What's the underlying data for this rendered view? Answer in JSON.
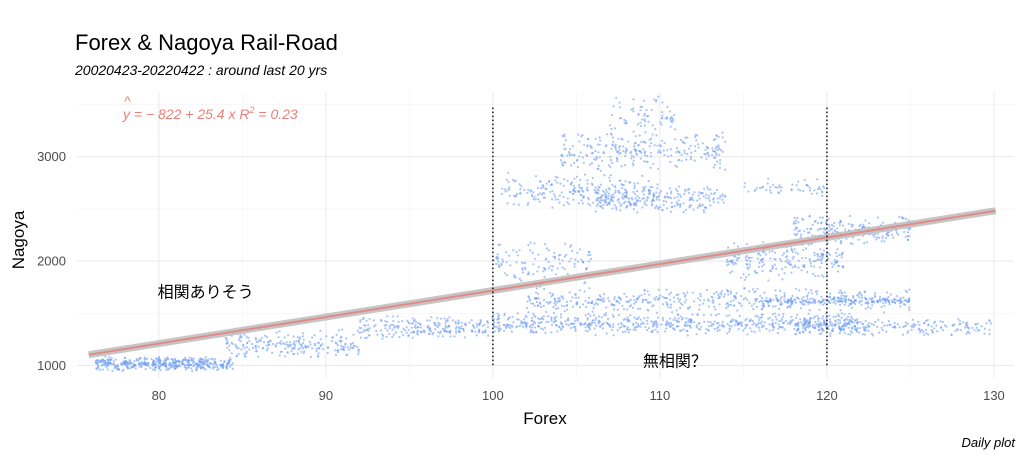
{
  "chart_data": {
    "type": "scatter",
    "title": "Forex & Nagoya Rail-Road",
    "subtitle": "20020423-20220422 : around last 20 yrs",
    "caption": "Daily plot",
    "xlabel": "Forex",
    "ylabel": "Nagoya",
    "xlim": [
      75.1,
      131.2
    ],
    "ylim": [
      880,
      3620
    ],
    "x_ticks": [
      80,
      90,
      100,
      110,
      120,
      130
    ],
    "x_tick_labels": [
      "80",
      "90",
      "100",
      "110",
      "120",
      "130"
    ],
    "y_ticks": [
      1000,
      2000,
      3000
    ],
    "y_tick_labels": [
      "1000",
      "2000",
      "3000"
    ],
    "grid": true,
    "point_color": "#6f9ff2",
    "regression": {
      "intercept": -822,
      "slope": 25.4,
      "r_squared": 0.23,
      "equation_parts": {
        "pre": "y",
        "mid": " = − 822 + 25.4 ",
        "x": "x",
        "r": "R",
        "sup": "2",
        "post": " = 0.23"
      },
      "line_color": "#e08b88",
      "band_color": "#bdbdbd",
      "x_range": [
        75.8,
        130.1
      ]
    },
    "vlines": [
      100,
      120
    ],
    "annotations": [
      {
        "text": "相関ありそう",
        "x": 82.8,
        "y": 1650
      },
      {
        "text": "無相関？",
        "x": 110.9,
        "y": 990
      }
    ],
    "point_clusters": [
      {
        "x": [
          76.2,
          84.5
        ],
        "y": [
          940,
          1090
        ],
        "n": 420
      },
      {
        "x": [
          84,
          92
        ],
        "y": [
          1050,
          1350
        ],
        "n": 220
      },
      {
        "x": [
          92,
          100
        ],
        "y": [
          1250,
          1480
        ],
        "n": 220
      },
      {
        "x": [
          100,
          122
        ],
        "y": [
          1280,
          1520
        ],
        "n": 650
      },
      {
        "x": [
          102,
          125
        ],
        "y": [
          1500,
          1750
        ],
        "n": 450
      },
      {
        "x": [
          100,
          106
        ],
        "y": [
          1750,
          2200
        ],
        "n": 120
      },
      {
        "x": [
          100.5,
          110
        ],
        "y": [
          2500,
          2850
        ],
        "n": 220
      },
      {
        "x": [
          104,
          114
        ],
        "y": [
          2850,
          3250
        ],
        "n": 260
      },
      {
        "x": [
          106,
          114
        ],
        "y": [
          2450,
          2750
        ],
        "n": 220
      },
      {
        "x": [
          107,
          111
        ],
        "y": [
          3200,
          3600
        ],
        "n": 70
      },
      {
        "x": [
          115,
          120
        ],
        "y": [
          2600,
          2800
        ],
        "n": 50
      },
      {
        "x": [
          114,
          121
        ],
        "y": [
          1800,
          2200
        ],
        "n": 200
      },
      {
        "x": [
          118,
          125
        ],
        "y": [
          2150,
          2450
        ],
        "n": 200
      },
      {
        "x": [
          116,
          125
        ],
        "y": [
          1580,
          1660
        ],
        "n": 150
      },
      {
        "x": [
          118,
          130
        ],
        "y": [
          1280,
          1460
        ],
        "n": 200
      }
    ]
  }
}
